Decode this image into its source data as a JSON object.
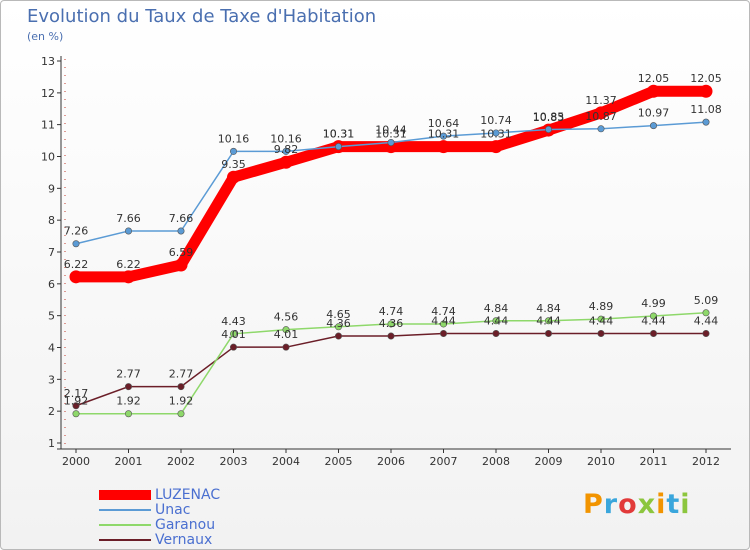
{
  "header": {
    "title": "Evolution du Taux de Taxe d'Habitation",
    "unit": "(en %)"
  },
  "chart_data": {
    "type": "line",
    "title": "Evolution du Taux de Taxe d'Habitation",
    "ylabel": "(en %)",
    "xlabel": "",
    "categories": [
      "2000",
      "2001",
      "2002",
      "2003",
      "2004",
      "2005",
      "2006",
      "2007",
      "2008",
      "2009",
      "2010",
      "2011",
      "2012"
    ],
    "ylim": [
      1,
      13
    ],
    "yticks": [
      1,
      2,
      3,
      4,
      5,
      6,
      7,
      8,
      9,
      10,
      11,
      12,
      13
    ],
    "grid": false,
    "legend_position": "bottom-left",
    "series": [
      {
        "name": "LUZENAC",
        "color": "#ff0000",
        "values": [
          6.22,
          6.22,
          6.59,
          9.35,
          9.82,
          10.31,
          10.31,
          10.31,
          10.31,
          10.83,
          11.37,
          12.05,
          12.05
        ]
      },
      {
        "name": "Unac",
        "color": "#5b9bd5",
        "values": [
          7.26,
          7.66,
          7.66,
          10.16,
          10.16,
          10.31,
          10.44,
          10.64,
          10.74,
          10.85,
          10.87,
          10.97,
          11.08
        ]
      },
      {
        "name": "Garanou",
        "color": "#8ed86a",
        "values": [
          1.92,
          1.92,
          1.92,
          4.43,
          4.56,
          4.65,
          4.74,
          4.74,
          4.84,
          4.84,
          4.89,
          4.99,
          5.09
        ]
      },
      {
        "name": "Vernaux",
        "color": "#6b1e28",
        "values": [
          2.17,
          2.77,
          2.77,
          4.01,
          4.01,
          4.36,
          4.36,
          4.44,
          4.44,
          4.44,
          4.44,
          4.44,
          4.44
        ]
      }
    ]
  },
  "brand": {
    "letters": [
      "P",
      "r",
      "o",
      "x",
      "i",
      "t",
      "i"
    ],
    "colors": [
      "#f29400",
      "#3aa6dc",
      "#e23a3a",
      "#8cc63e",
      "#f29400",
      "#3aa6dc",
      "#8cc63e"
    ]
  }
}
